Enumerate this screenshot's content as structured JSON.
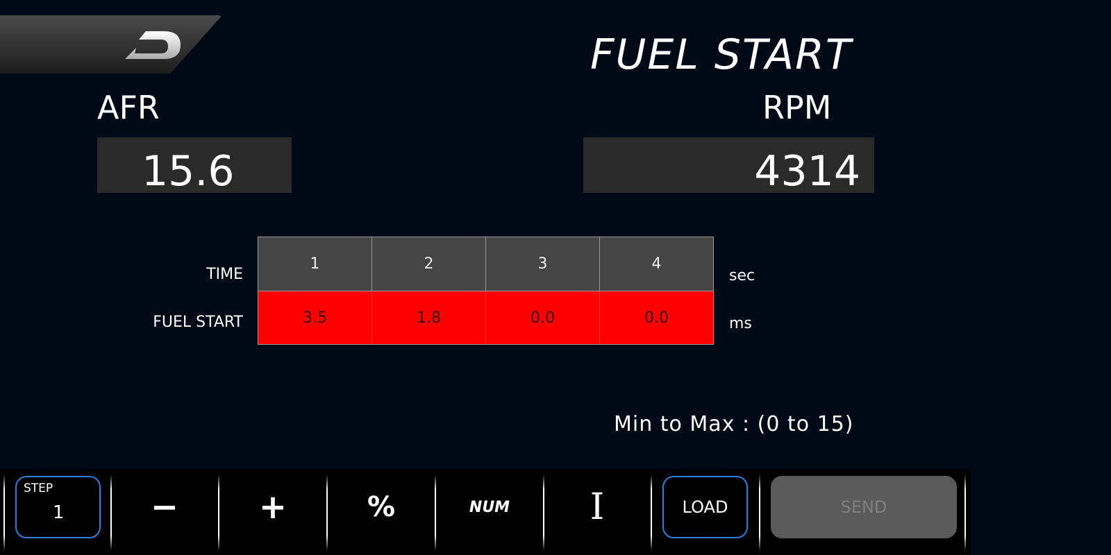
{
  "header": {
    "title": "FUEL START",
    "logo": "D"
  },
  "afr": {
    "label": "AFR",
    "value": "15.6"
  },
  "rpm": {
    "label": "RPM",
    "value": "4314"
  },
  "table": {
    "rows": [
      {
        "label": "TIME",
        "unit": "sec",
        "values": [
          "1",
          "2",
          "3",
          "4"
        ]
      },
      {
        "label": "FUEL START",
        "unit": "ms",
        "values": [
          "3.5",
          "1.8",
          "0.0",
          "0.0"
        ]
      }
    ]
  },
  "range": "Min to Max : (0 to 15)",
  "toolbar": {
    "step_label": "STEP",
    "step_value": "1",
    "minus": "−",
    "plus": "+",
    "percent": "%",
    "num": "NUM",
    "cursor": "I",
    "load": "LOAD",
    "send": "SEND"
  },
  "colors": {
    "accent": "#2a7fdc",
    "cell": "#ff0000"
  }
}
